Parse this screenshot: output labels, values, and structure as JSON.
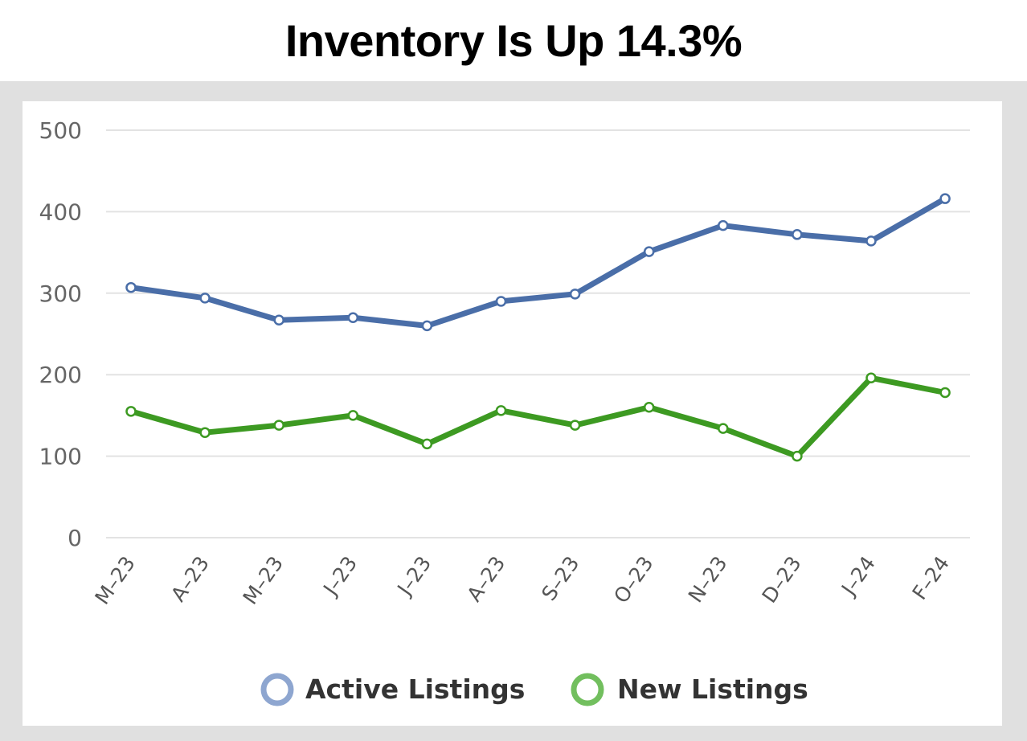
{
  "title": "Inventory Is Up 14.3%",
  "colors": {
    "active": "#4a6ea8",
    "new": "#3d9a22",
    "active_legend": "#8ea6d0",
    "new_legend": "#72bf5e",
    "grid": "#e3e3e3",
    "frame": "#e0e0e0"
  },
  "chart_data": {
    "type": "line",
    "title": "Inventory Is Up 14.3%",
    "xlabel": "",
    "ylabel": "",
    "ylim": [
      0,
      500
    ],
    "yticks": [
      0,
      100,
      200,
      300,
      400,
      500
    ],
    "grid": true,
    "legend_position": "bottom",
    "categories": [
      "M–23",
      "A–23",
      "M–23",
      "J–23",
      "J–23",
      "A–23",
      "S–23",
      "O–23",
      "N–23",
      "D–23",
      "J–24",
      "F–24"
    ],
    "series": [
      {
        "name": "Active Listings",
        "values": [
          307,
          294,
          267,
          270,
          260,
          290,
          299,
          351,
          383,
          372,
          364,
          416
        ]
      },
      {
        "name": "New Listings",
        "values": [
          155,
          129,
          138,
          150,
          115,
          156,
          138,
          160,
          134,
          100,
          196,
          178
        ]
      }
    ]
  }
}
